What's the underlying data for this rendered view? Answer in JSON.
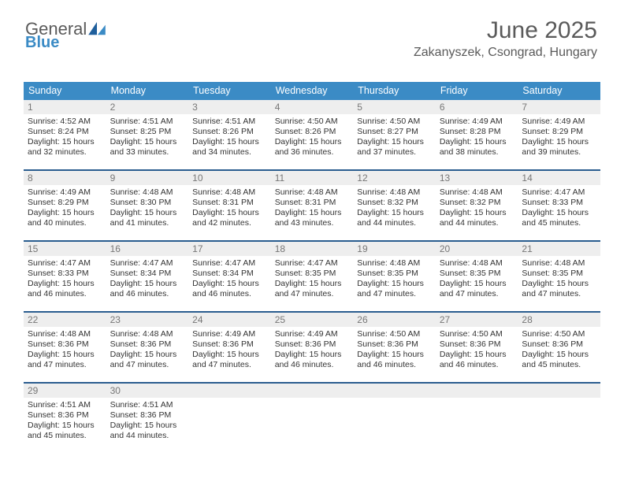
{
  "brand": {
    "word1": "General",
    "word2": "Blue"
  },
  "title": "June 2025",
  "location": "Zakanyszek, Csongrad, Hungary",
  "style": {
    "header_blue": "#3b8bc5",
    "divider_blue": "#2a5d8f",
    "text_dark": "#4a4a4a",
    "daynum_bg": "#eeeeee",
    "page_bg": "#ffffff",
    "weekday_font_size": 12.5,
    "day_font_size": 10.5,
    "title_font_size": 30,
    "location_font_size": 16
  },
  "weekdays": [
    "Sunday",
    "Monday",
    "Tuesday",
    "Wednesday",
    "Thursday",
    "Friday",
    "Saturday"
  ],
  "weeks": [
    [
      {
        "num": "1",
        "sunrise": "Sunrise: 4:52 AM",
        "sunset": "Sunset: 8:24 PM",
        "day1": "Daylight: 15 hours",
        "day2": "and 32 minutes."
      },
      {
        "num": "2",
        "sunrise": "Sunrise: 4:51 AM",
        "sunset": "Sunset: 8:25 PM",
        "day1": "Daylight: 15 hours",
        "day2": "and 33 minutes."
      },
      {
        "num": "3",
        "sunrise": "Sunrise: 4:51 AM",
        "sunset": "Sunset: 8:26 PM",
        "day1": "Daylight: 15 hours",
        "day2": "and 34 minutes."
      },
      {
        "num": "4",
        "sunrise": "Sunrise: 4:50 AM",
        "sunset": "Sunset: 8:26 PM",
        "day1": "Daylight: 15 hours",
        "day2": "and 36 minutes."
      },
      {
        "num": "5",
        "sunrise": "Sunrise: 4:50 AM",
        "sunset": "Sunset: 8:27 PM",
        "day1": "Daylight: 15 hours",
        "day2": "and 37 minutes."
      },
      {
        "num": "6",
        "sunrise": "Sunrise: 4:49 AM",
        "sunset": "Sunset: 8:28 PM",
        "day1": "Daylight: 15 hours",
        "day2": "and 38 minutes."
      },
      {
        "num": "7",
        "sunrise": "Sunrise: 4:49 AM",
        "sunset": "Sunset: 8:29 PM",
        "day1": "Daylight: 15 hours",
        "day2": "and 39 minutes."
      }
    ],
    [
      {
        "num": "8",
        "sunrise": "Sunrise: 4:49 AM",
        "sunset": "Sunset: 8:29 PM",
        "day1": "Daylight: 15 hours",
        "day2": "and 40 minutes."
      },
      {
        "num": "9",
        "sunrise": "Sunrise: 4:48 AM",
        "sunset": "Sunset: 8:30 PM",
        "day1": "Daylight: 15 hours",
        "day2": "and 41 minutes."
      },
      {
        "num": "10",
        "sunrise": "Sunrise: 4:48 AM",
        "sunset": "Sunset: 8:31 PM",
        "day1": "Daylight: 15 hours",
        "day2": "and 42 minutes."
      },
      {
        "num": "11",
        "sunrise": "Sunrise: 4:48 AM",
        "sunset": "Sunset: 8:31 PM",
        "day1": "Daylight: 15 hours",
        "day2": "and 43 minutes."
      },
      {
        "num": "12",
        "sunrise": "Sunrise: 4:48 AM",
        "sunset": "Sunset: 8:32 PM",
        "day1": "Daylight: 15 hours",
        "day2": "and 44 minutes."
      },
      {
        "num": "13",
        "sunrise": "Sunrise: 4:48 AM",
        "sunset": "Sunset: 8:32 PM",
        "day1": "Daylight: 15 hours",
        "day2": "and 44 minutes."
      },
      {
        "num": "14",
        "sunrise": "Sunrise: 4:47 AM",
        "sunset": "Sunset: 8:33 PM",
        "day1": "Daylight: 15 hours",
        "day2": "and 45 minutes."
      }
    ],
    [
      {
        "num": "15",
        "sunrise": "Sunrise: 4:47 AM",
        "sunset": "Sunset: 8:33 PM",
        "day1": "Daylight: 15 hours",
        "day2": "and 46 minutes."
      },
      {
        "num": "16",
        "sunrise": "Sunrise: 4:47 AM",
        "sunset": "Sunset: 8:34 PM",
        "day1": "Daylight: 15 hours",
        "day2": "and 46 minutes."
      },
      {
        "num": "17",
        "sunrise": "Sunrise: 4:47 AM",
        "sunset": "Sunset: 8:34 PM",
        "day1": "Daylight: 15 hours",
        "day2": "and 46 minutes."
      },
      {
        "num": "18",
        "sunrise": "Sunrise: 4:47 AM",
        "sunset": "Sunset: 8:35 PM",
        "day1": "Daylight: 15 hours",
        "day2": "and 47 minutes."
      },
      {
        "num": "19",
        "sunrise": "Sunrise: 4:48 AM",
        "sunset": "Sunset: 8:35 PM",
        "day1": "Daylight: 15 hours",
        "day2": "and 47 minutes."
      },
      {
        "num": "20",
        "sunrise": "Sunrise: 4:48 AM",
        "sunset": "Sunset: 8:35 PM",
        "day1": "Daylight: 15 hours",
        "day2": "and 47 minutes."
      },
      {
        "num": "21",
        "sunrise": "Sunrise: 4:48 AM",
        "sunset": "Sunset: 8:35 PM",
        "day1": "Daylight: 15 hours",
        "day2": "and 47 minutes."
      }
    ],
    [
      {
        "num": "22",
        "sunrise": "Sunrise: 4:48 AM",
        "sunset": "Sunset: 8:36 PM",
        "day1": "Daylight: 15 hours",
        "day2": "and 47 minutes."
      },
      {
        "num": "23",
        "sunrise": "Sunrise: 4:48 AM",
        "sunset": "Sunset: 8:36 PM",
        "day1": "Daylight: 15 hours",
        "day2": "and 47 minutes."
      },
      {
        "num": "24",
        "sunrise": "Sunrise: 4:49 AM",
        "sunset": "Sunset: 8:36 PM",
        "day1": "Daylight: 15 hours",
        "day2": "and 47 minutes."
      },
      {
        "num": "25",
        "sunrise": "Sunrise: 4:49 AM",
        "sunset": "Sunset: 8:36 PM",
        "day1": "Daylight: 15 hours",
        "day2": "and 46 minutes."
      },
      {
        "num": "26",
        "sunrise": "Sunrise: 4:50 AM",
        "sunset": "Sunset: 8:36 PM",
        "day1": "Daylight: 15 hours",
        "day2": "and 46 minutes."
      },
      {
        "num": "27",
        "sunrise": "Sunrise: 4:50 AM",
        "sunset": "Sunset: 8:36 PM",
        "day1": "Daylight: 15 hours",
        "day2": "and 46 minutes."
      },
      {
        "num": "28",
        "sunrise": "Sunrise: 4:50 AM",
        "sunset": "Sunset: 8:36 PM",
        "day1": "Daylight: 15 hours",
        "day2": "and 45 minutes."
      }
    ],
    [
      {
        "num": "29",
        "sunrise": "Sunrise: 4:51 AM",
        "sunset": "Sunset: 8:36 PM",
        "day1": "Daylight: 15 hours",
        "day2": "and 45 minutes."
      },
      {
        "num": "30",
        "sunrise": "Sunrise: 4:51 AM",
        "sunset": "Sunset: 8:36 PM",
        "day1": "Daylight: 15 hours",
        "day2": "and 44 minutes."
      },
      null,
      null,
      null,
      null,
      null
    ]
  ]
}
